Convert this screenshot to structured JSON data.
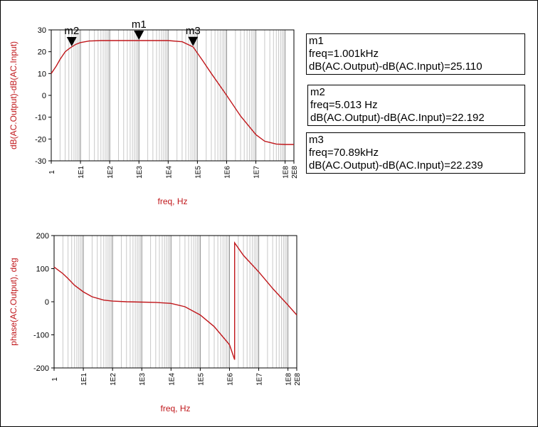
{
  "chart_data": [
    {
      "type": "line",
      "xscale": "log",
      "xlim": [
        1,
        200000000
      ],
      "ylim": [
        -30,
        30
      ],
      "xlabel": "freq, Hz",
      "ylabel": "dB(AC.Output)-dB(AC.Input)",
      "yticks": [
        "30",
        "20",
        "10",
        "0",
        "-10",
        "-20",
        "-30"
      ],
      "xticks": [
        "1",
        "1E1",
        "1E2",
        "1E3",
        "1E4",
        "1E5",
        "1E6",
        "1E7",
        "1E8",
        "2E8"
      ],
      "line_color": "#c0171b",
      "series": [
        {
          "x": [
            1,
            1.5,
            2,
            3,
            4,
            5,
            7,
            10,
            20,
            50,
            100,
            1000,
            10000,
            30000,
            70890,
            150000,
            300000,
            1000000,
            3000000,
            10000000,
            20000000,
            50000000,
            100000000,
            200000000
          ],
          "y": [
            10.0,
            13.5,
            16.5,
            20.0,
            21.3,
            22.2,
            23.4,
            24.2,
            24.9,
            25.1,
            25.1,
            25.1,
            25.1,
            24.6,
            22.2,
            16.0,
            10.0,
            0.0,
            -9.5,
            -18.0,
            -21.0,
            -22.3,
            -22.5,
            -22.5
          ]
        }
      ],
      "markers": [
        {
          "name": "m1",
          "x": 1001,
          "y": 25.11
        },
        {
          "name": "m2",
          "x": 5.013,
          "y": 22.192
        },
        {
          "name": "m3",
          "x": 70890,
          "y": 22.239
        }
      ]
    },
    {
      "type": "line",
      "xscale": "log",
      "xlim": [
        1,
        200000000
      ],
      "ylim": [
        -200,
        200
      ],
      "xlabel": "freq, Hz",
      "ylabel": "phase(AC.Output), deg",
      "yticks": [
        "200",
        "100",
        "0",
        "-100",
        "-200"
      ],
      "xticks": [
        "1",
        "1E1",
        "1E2",
        "1E3",
        "1E4",
        "1E5",
        "1E6",
        "1E7",
        "1E8",
        "2E8"
      ],
      "line_color": "#c0171b",
      "series": [
        {
          "x": [
            1,
            2,
            3,
            5,
            10,
            20,
            50,
            100,
            300,
            1000,
            3000,
            10000,
            30000,
            100000,
            300000,
            1000000,
            1500000,
            1500001,
            3000000,
            10000000,
            30000000,
            100000000,
            200000000
          ],
          "y": [
            105,
            85,
            70,
            50,
            30,
            15,
            5,
            2,
            0,
            -1,
            -2,
            -5,
            -15,
            -40,
            -75,
            -130,
            -175,
            178,
            140,
            90,
            40,
            -10,
            -40
          ]
        }
      ]
    }
  ],
  "readouts": [
    {
      "name": "m1",
      "freq": "freq=1.001kHz",
      "value": "dB(AC.Output)-dB(AC.Input)=25.110"
    },
    {
      "name": "m2",
      "freq": "freq=5.013 Hz",
      "value": "dB(AC.Output)-dB(AC.Input)=22.192"
    },
    {
      "name": "m3",
      "freq": "freq=70.89kHz",
      "value": "dB(AC.Output)-dB(AC.Input)=22.239"
    }
  ]
}
